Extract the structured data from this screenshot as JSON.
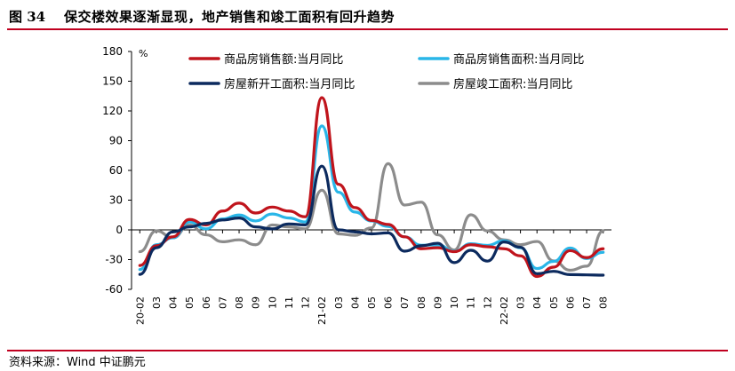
{
  "header": {
    "figure_number": "图 34",
    "title": "保交楼效果逐渐显现，地产销售和竣工面积有回升趋势"
  },
  "footer": {
    "source": "资料来源：Wind    中证鹏元"
  },
  "colors": {
    "rule": "#c0001f",
    "sales_amount": "#c0141c",
    "sales_area": "#29b6e8",
    "new_start": "#0c2a5e",
    "completion": "#8c8c8c"
  },
  "chart_data": {
    "type": "line",
    "unit_label": "%",
    "xlabel": "",
    "ylabel": "",
    "ylim": [
      -60,
      180
    ],
    "yticks": [
      -60,
      -30,
      0,
      30,
      60,
      90,
      120,
      150,
      180
    ],
    "grid": false,
    "legend_position": "top",
    "x": [
      "20-02",
      "03",
      "04",
      "05",
      "06",
      "07",
      "08",
      "09",
      "10",
      "11",
      "12",
      "21-02",
      "03",
      "04",
      "05",
      "06",
      "07",
      "08",
      "09",
      "10",
      "11",
      "12",
      "22-02",
      "03",
      "04",
      "05",
      "06",
      "07",
      "08"
    ],
    "series": [
      {
        "name": "商品房销售额:当月同比",
        "color": "#c0141c",
        "values": [
          -35.9,
          -16,
          -7,
          10.5,
          5,
          19,
          27,
          17,
          23,
          19,
          13.2,
          133.4,
          46,
          22.5,
          9.5,
          5.5,
          -7,
          -19,
          -18,
          -22,
          -15,
          -17,
          -19,
          -26.2,
          -47,
          -37.6,
          -21,
          -28,
          -19
        ]
      },
      {
        "name": "商品房销售面积:当月同比",
        "color": "#29b6e8",
        "values": [
          -40,
          -15,
          -8,
          8,
          1,
          11,
          15,
          9,
          16,
          12,
          8,
          104.9,
          38,
          18,
          9,
          3.5,
          -7,
          -15.5,
          -15,
          -21.7,
          -14,
          -15.6,
          -11,
          -18,
          -39,
          -31.8,
          -18.3,
          -28.9,
          -22.6
        ]
      },
      {
        "name": "房屋新开工面积:当月同比",
        "color": "#0c2a5e",
        "values": [
          -44.9,
          -18,
          -2,
          3,
          6.5,
          10,
          12,
          3,
          1,
          6,
          5,
          64.3,
          0,
          -2,
          -4,
          -3,
          -21.5,
          -16,
          -13.5,
          -33,
          -20.6,
          -31.5,
          -12.2,
          -17.5,
          -44.2,
          -41.8,
          -45.1,
          -45.4,
          -45.7
        ]
      },
      {
        "name": "房屋竣工面积:当月同比",
        "color": "#8c8c8c",
        "values": [
          -22,
          -1,
          -8,
          5,
          -5,
          -12,
          -10,
          -15,
          5,
          3,
          1,
          40,
          -4,
          -5.5,
          2,
          66.8,
          25,
          28,
          -5,
          -20.3,
          15.2,
          -1,
          -10,
          -15,
          -11.7,
          -31.3,
          -40.7,
          -36.6,
          -1
        ]
      }
    ]
  }
}
